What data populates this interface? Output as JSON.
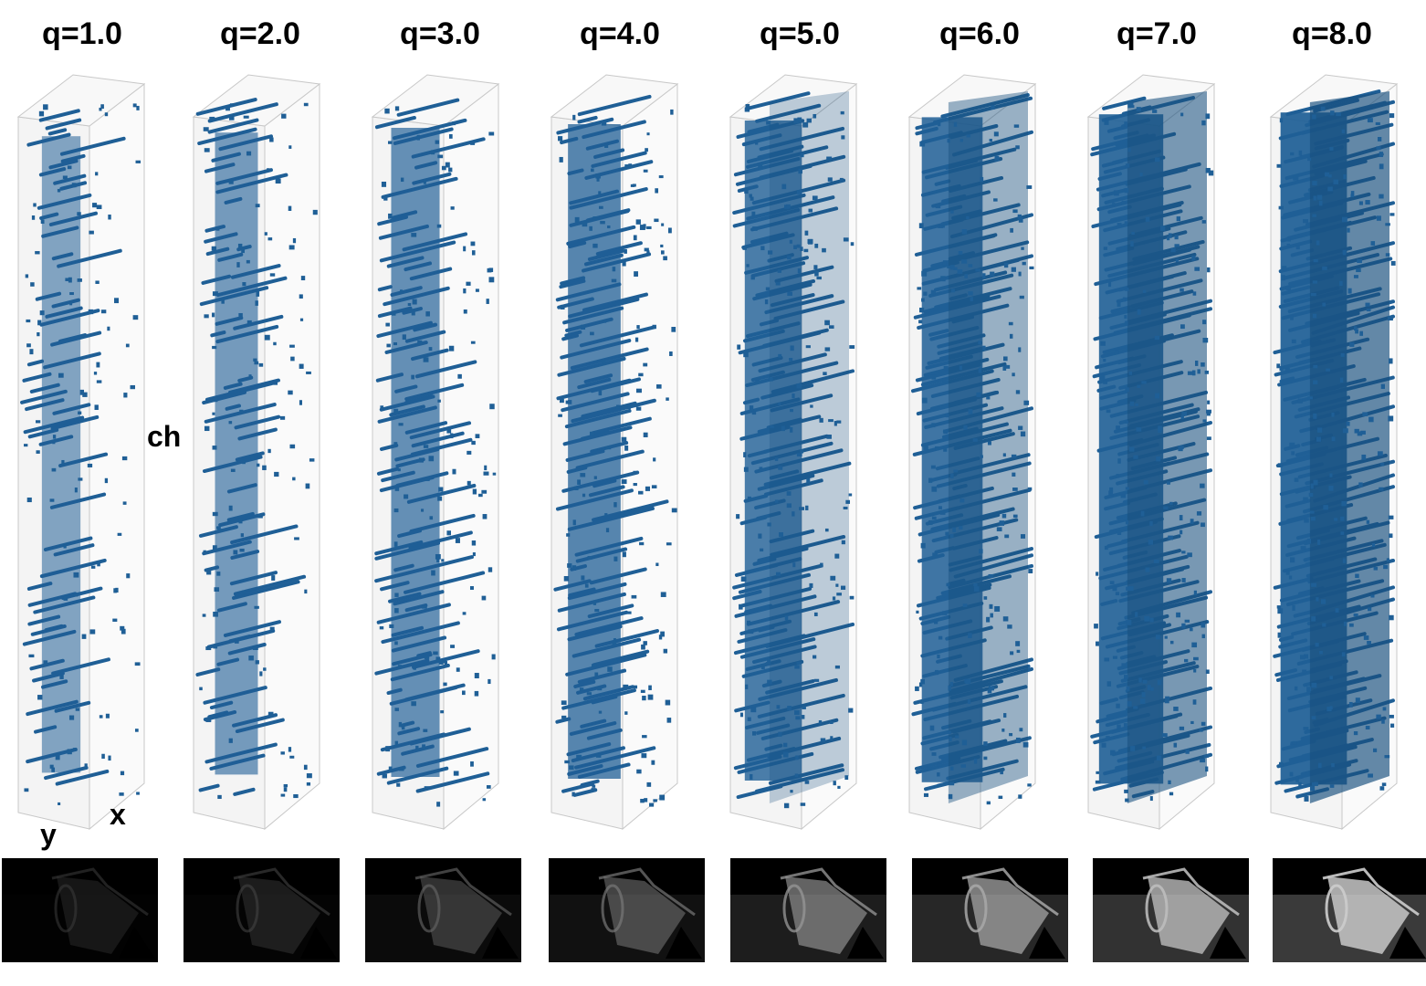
{
  "panels": [
    {
      "label": "q=1.0",
      "q": 1.0,
      "density": 0.32,
      "brightness": 0.1
    },
    {
      "label": "q=2.0",
      "q": 2.0,
      "density": 0.42,
      "brightness": 0.15
    },
    {
      "label": "q=3.0",
      "q": 3.0,
      "density": 0.55,
      "brightness": 0.3
    },
    {
      "label": "q=4.0",
      "q": 4.0,
      "density": 0.65,
      "brightness": 0.4
    },
    {
      "label": "q=5.0",
      "q": 5.0,
      "density": 0.75,
      "brightness": 0.55
    },
    {
      "label": "q=6.0",
      "q": 6.0,
      "density": 0.84,
      "brightness": 0.65
    },
    {
      "label": "q=7.0",
      "q": 7.0,
      "density": 0.92,
      "brightness": 0.75
    },
    {
      "label": "q=8.0",
      "q": 8.0,
      "density": 0.97,
      "brightness": 0.82
    }
  ],
  "axes": {
    "ch": "ch",
    "x": "x",
    "y": "y"
  },
  "colors": {
    "voxel": "#1f5f96",
    "voxel_dark": "#184f7e",
    "box_edge": "#c8c8c8",
    "box_face": "#f4f4f4",
    "thumb_bg": "#000000"
  }
}
